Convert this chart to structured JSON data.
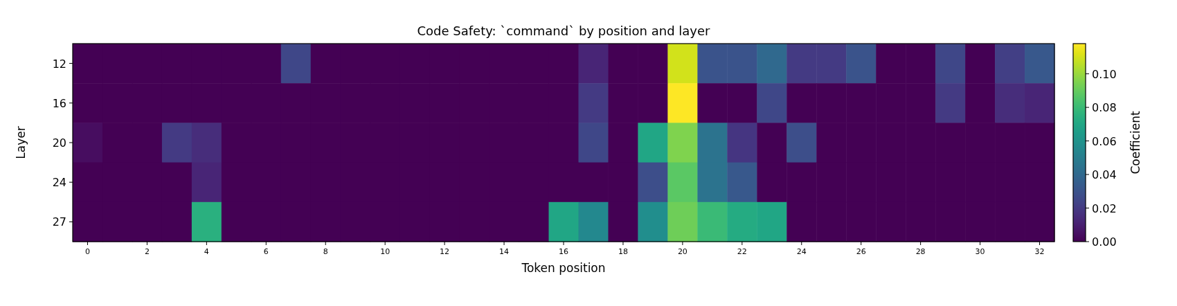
{
  "chart_data": {
    "type": "heatmap",
    "title": "Code Safety: `command` by position and layer",
    "xlabel": "Token position",
    "ylabel": "Layer",
    "clabel": "Coefficient",
    "categories": [
      "0",
      null,
      "2",
      null,
      "4",
      null,
      "6",
      null,
      "8",
      null,
      "10",
      null,
      "12",
      null,
      "14",
      null,
      "16",
      null,
      "18",
      null,
      "20",
      null,
      "22",
      null,
      "24",
      null,
      "26",
      null,
      "28",
      null,
      "30",
      null,
      "32"
    ],
    "y_categories": [
      "12",
      "16",
      "20",
      "24",
      "27"
    ],
    "cells": [
      [
        0,
        0,
        0,
        0,
        0,
        0,
        0,
        0.025,
        0,
        0,
        0,
        0,
        0,
        0,
        0,
        0,
        0,
        0.012,
        0,
        0,
        0.11,
        0.03,
        0.03,
        0.04,
        0.02,
        0.02,
        0.03,
        0,
        0,
        0.025,
        0,
        0.022,
        0.032
      ],
      [
        0,
        0,
        0,
        0,
        0,
        0,
        0,
        0,
        0,
        0,
        0,
        0,
        0,
        0,
        0,
        0,
        0,
        0.02,
        0,
        0,
        0.118,
        0,
        0,
        0.025,
        0,
        0,
        0,
        0,
        0,
        0.02,
        0,
        0.015,
        0.012
      ],
      [
        0.004,
        0,
        0,
        0.02,
        0.015,
        0,
        0,
        0,
        0,
        0,
        0,
        0,
        0,
        0,
        0,
        0,
        0,
        0.025,
        0,
        0.07,
        0.095,
        0.045,
        0.018,
        0,
        0.028,
        0,
        0,
        0,
        0,
        0,
        0,
        0,
        0
      ],
      [
        0,
        0,
        0,
        0,
        0.012,
        0,
        0,
        0,
        0,
        0,
        0,
        0,
        0,
        0,
        0,
        0,
        0,
        0,
        0,
        0.028,
        0.088,
        0.045,
        0.032,
        0,
        0,
        0,
        0,
        0,
        0,
        0,
        0,
        0,
        0
      ],
      [
        0,
        0,
        0,
        0,
        0.075,
        0,
        0,
        0,
        0,
        0,
        0,
        0,
        0,
        0,
        0,
        0,
        0.07,
        0.055,
        0,
        0.058,
        0.092,
        0.08,
        0.072,
        0.07,
        0,
        0,
        0,
        0,
        0,
        0,
        0,
        0,
        0
      ]
    ],
    "clim": [
      0,
      0.118
    ],
    "cticks": [
      {
        "value": 0,
        "label": "0.00"
      },
      {
        "value": 0.02,
        "label": "0.02"
      },
      {
        "value": 0.04,
        "label": "0.04"
      },
      {
        "value": 0.06,
        "label": "0.06"
      },
      {
        "value": 0.08,
        "label": "0.08"
      },
      {
        "value": 0.1,
        "label": "0.10"
      }
    ]
  }
}
